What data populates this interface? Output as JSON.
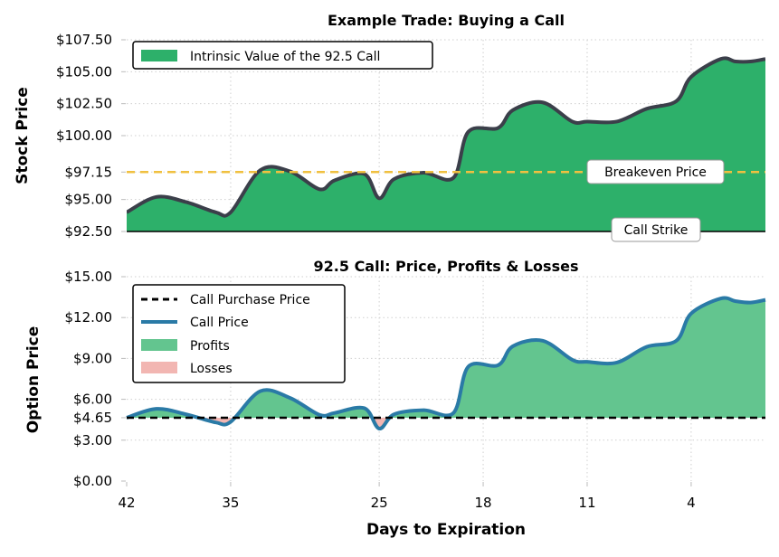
{
  "chart_data": [
    {
      "type": "area",
      "title": "Example Trade: Buying a Call",
      "ylabel": "Stock Price",
      "xlabel": "",
      "xlim": [
        42,
        -1
      ],
      "ylim": [
        92.5,
        107.5
      ],
      "yticks": [
        {
          "value": 92.5,
          "label": "$92.50"
        },
        {
          "value": 95.0,
          "label": "$95.00"
        },
        {
          "value": 97.15,
          "label": "$97.15"
        },
        {
          "value": 100.0,
          "label": "$100.00"
        },
        {
          "value": 102.5,
          "label": "$102.50"
        },
        {
          "value": 105.0,
          "label": "$105.00"
        },
        {
          "value": 107.5,
          "label": "$107.50"
        }
      ],
      "grid": true,
      "legend_position": "top-left",
      "legend": [
        {
          "label": "Intrinsic Value of the 92.5 Call",
          "color": "#2db06a"
        }
      ],
      "series": [
        {
          "name": "Intrinsic Value of the 92.5 Call",
          "x": [
            42,
            40,
            38,
            36,
            35,
            33,
            31,
            29,
            28,
            26,
            25,
            24,
            22,
            20,
            19,
            17,
            16,
            14,
            12,
            11,
            9,
            7,
            5,
            4,
            2,
            1,
            0,
            -1
          ],
          "y": [
            94.0,
            95.2,
            94.8,
            94.0,
            94.0,
            97.3,
            97.2,
            95.8,
            96.5,
            97.0,
            95.1,
            96.6,
            97.1,
            96.7,
            100.3,
            100.6,
            102.0,
            102.6,
            101.1,
            101.1,
            101.1,
            102.1,
            102.7,
            104.6,
            106.0,
            105.8,
            105.8,
            106.0
          ],
          "color": "#2db06a",
          "line_color": "#3b3f4a"
        }
      ],
      "reference_lines": [
        {
          "label": "Breakeven Price",
          "value": 97.15,
          "color": "#f0c040",
          "style": "dashed"
        },
        {
          "label": "Call Strike",
          "value": 92.5,
          "color": "#000000",
          "style": "solid"
        }
      ]
    },
    {
      "type": "area",
      "title": "92.5 Call: Price, Profits & Losses",
      "ylabel": "Option Price",
      "xlabel": "Days to Expiration",
      "xlim": [
        42,
        -1
      ],
      "ylim": [
        0,
        15
      ],
      "xticks": [
        {
          "value": 42,
          "label": "42"
        },
        {
          "value": 35,
          "label": "35"
        },
        {
          "value": 25,
          "label": "25"
        },
        {
          "value": 18,
          "label": "18"
        },
        {
          "value": 11,
          "label": "11"
        },
        {
          "value": 4,
          "label": "4"
        }
      ],
      "yticks": [
        {
          "value": 0,
          "label": "$0.00"
        },
        {
          "value": 3,
          "label": "$3.00"
        },
        {
          "value": 4.65,
          "label": "$4.65"
        },
        {
          "value": 6,
          "label": "$6.00"
        },
        {
          "value": 9,
          "label": "$9.00"
        },
        {
          "value": 12,
          "label": "$12.00"
        },
        {
          "value": 15,
          "label": "$15.00"
        }
      ],
      "grid": true,
      "legend_position": "top-left",
      "legend": [
        {
          "label": "Call Purchase Price",
          "color": "#000000",
          "kind": "dashed"
        },
        {
          "label": "Call Price",
          "color": "#2a7aa6",
          "kind": "line"
        },
        {
          "label": "Profits",
          "color": "#63c58f",
          "kind": "patch"
        },
        {
          "label": "Losses",
          "color": "#f2b6b2",
          "kind": "patch"
        }
      ],
      "purchase_price": 4.65,
      "series": [
        {
          "name": "Call Price",
          "x": [
            42,
            40,
            38,
            36,
            35,
            33,
            31,
            29,
            28,
            26,
            25,
            24,
            22,
            20,
            19,
            17,
            16,
            14,
            12,
            11,
            9,
            7,
            5,
            4,
            2,
            1,
            0,
            -1
          ],
          "y": [
            4.65,
            5.3,
            4.9,
            4.3,
            4.35,
            6.6,
            6.1,
            4.85,
            5.0,
            5.35,
            3.85,
            4.9,
            5.2,
            5.0,
            8.4,
            8.5,
            9.9,
            10.3,
            8.9,
            8.75,
            8.7,
            9.85,
            10.3,
            12.3,
            13.4,
            13.2,
            13.1,
            13.3
          ],
          "color": "#2a7aa6"
        }
      ]
    }
  ]
}
